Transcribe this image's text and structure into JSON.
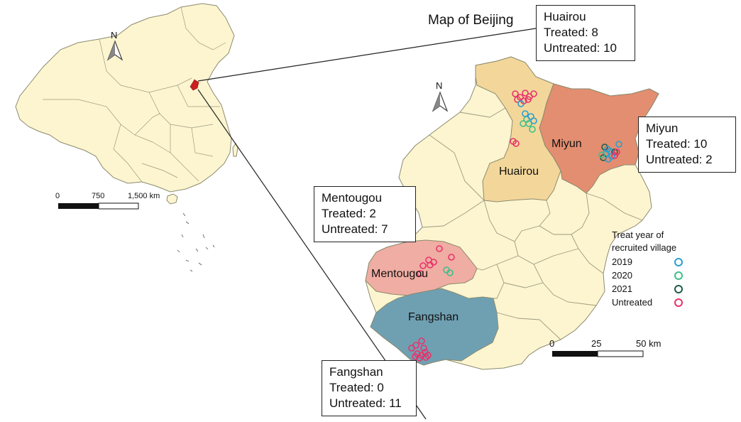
{
  "map_title": "Map of Beijing",
  "north_label": "N",
  "china_scale": {
    "ticks": [
      "0",
      "750",
      "1,500 km"
    ]
  },
  "beijing_scale": {
    "ticks": [
      "0",
      "25",
      "50 km"
    ]
  },
  "districts": {
    "huairou": "Huairou",
    "miyun": "Miyun",
    "mentougou": "Mentougou",
    "fangshan": "Fangshan"
  },
  "callouts": [
    {
      "district": "Huairou",
      "treated": "Treated: 8",
      "untreated": "Untreated: 10"
    },
    {
      "district": "Miyun",
      "treated": "Treated: 10",
      "untreated": "Untreated: 2"
    },
    {
      "district": "Mentougou",
      "treated": "Treated: 2",
      "untreated": "Untreated: 7"
    },
    {
      "district": "Fangshan",
      "treated": "Treated: 0",
      "untreated": "Untreated: 11"
    }
  ],
  "legend": {
    "title_line1": "Treat year of",
    "title_line2": "recruited village",
    "items": [
      {
        "label": "2019",
        "color": "#2a9fd0"
      },
      {
        "label": "2020",
        "color": "#3cc08a"
      },
      {
        "label": "2021",
        "color": "#1d5b47"
      },
      {
        "label": "Untreated",
        "color": "#e8336b"
      }
    ]
  },
  "colors": {
    "base": "#fdf5cf",
    "huairou": "#f3d79a",
    "miyun": "#e38e70",
    "mentougou": "#f0ada3",
    "fangshan": "#6fa0b2",
    "beijing_marker": "#cc1f1f"
  }
}
